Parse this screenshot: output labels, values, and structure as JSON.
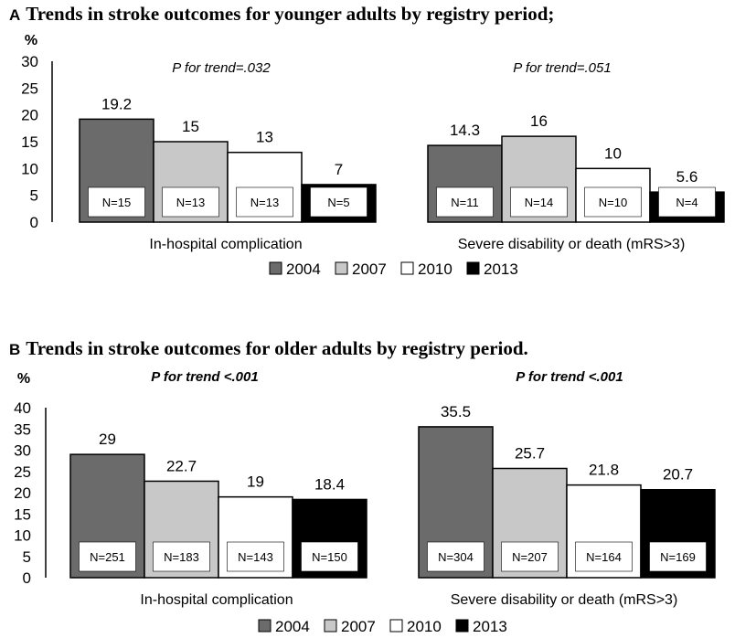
{
  "legend": {
    "series_names": [
      "2004",
      "2007",
      "2010",
      "2013"
    ],
    "series_colors": [
      "#6b6b6b",
      "#c8c8c8",
      "#ffffff",
      "#000000"
    ]
  },
  "chart_data": [
    {
      "type": "bar",
      "panel_letter": "A",
      "title": "Trends in stroke outcomes for younger adults by registry period;",
      "ylabel": "%",
      "ylim": [
        0,
        30
      ],
      "yticks": [
        0,
        5,
        10,
        15,
        20,
        25,
        30
      ],
      "categories": [
        "In-hospital complication",
        "Severe disability or death (mRS>3)"
      ],
      "trend_labels": [
        "P for trend=.032",
        "P for trend=.051"
      ],
      "series": [
        {
          "name": "2004",
          "color": "#6b6b6b",
          "values": [
            19.2,
            14.3
          ],
          "labels": [
            "19.2",
            "14.3"
          ],
          "n": [
            "N=15",
            "N=11"
          ]
        },
        {
          "name": "2007",
          "color": "#c8c8c8",
          "values": [
            15,
            16
          ],
          "labels": [
            "15",
            "16"
          ],
          "n": [
            "N=13",
            "N=14"
          ]
        },
        {
          "name": "2010",
          "color": "#ffffff",
          "values": [
            13,
            10
          ],
          "labels": [
            "13",
            "10"
          ],
          "n": [
            "N=13",
            "N=10"
          ]
        },
        {
          "name": "2013",
          "color": "#000000",
          "values": [
            7,
            5.6
          ],
          "labels": [
            "7",
            "5.6"
          ],
          "n": [
            "N=5",
            "N=4"
          ]
        }
      ]
    },
    {
      "type": "bar",
      "panel_letter": "B",
      "title": "Trends in stroke outcomes for older adults by registry period.",
      "ylabel": "%",
      "ylim": [
        0,
        40
      ],
      "yticks": [
        0,
        5,
        10,
        15,
        20,
        25,
        30,
        35,
        40
      ],
      "categories": [
        "In-hospital complication",
        "Severe disability or death  (mRS>3)"
      ],
      "trend_labels": [
        "P for trend <.001",
        "P for trend <.001"
      ],
      "series": [
        {
          "name": "2004",
          "color": "#6b6b6b",
          "values": [
            29,
            35.5
          ],
          "labels": [
            "29",
            "35.5"
          ],
          "n": [
            "N=251",
            "N=304"
          ]
        },
        {
          "name": "2007",
          "color": "#c8c8c8",
          "values": [
            22.7,
            25.7
          ],
          "labels": [
            "22.7",
            "25.7"
          ],
          "n": [
            "N=183",
            "N=207"
          ]
        },
        {
          "name": "2010",
          "color": "#ffffff",
          "values": [
            19,
            21.8
          ],
          "labels": [
            "19",
            "21.8"
          ],
          "n": [
            "N=143",
            "N=164"
          ]
        },
        {
          "name": "2013",
          "color": "#000000",
          "values": [
            18.4,
            20.7
          ],
          "labels": [
            "18.4",
            "20.7"
          ],
          "n": [
            "N=150",
            "N=169"
          ]
        }
      ]
    }
  ]
}
